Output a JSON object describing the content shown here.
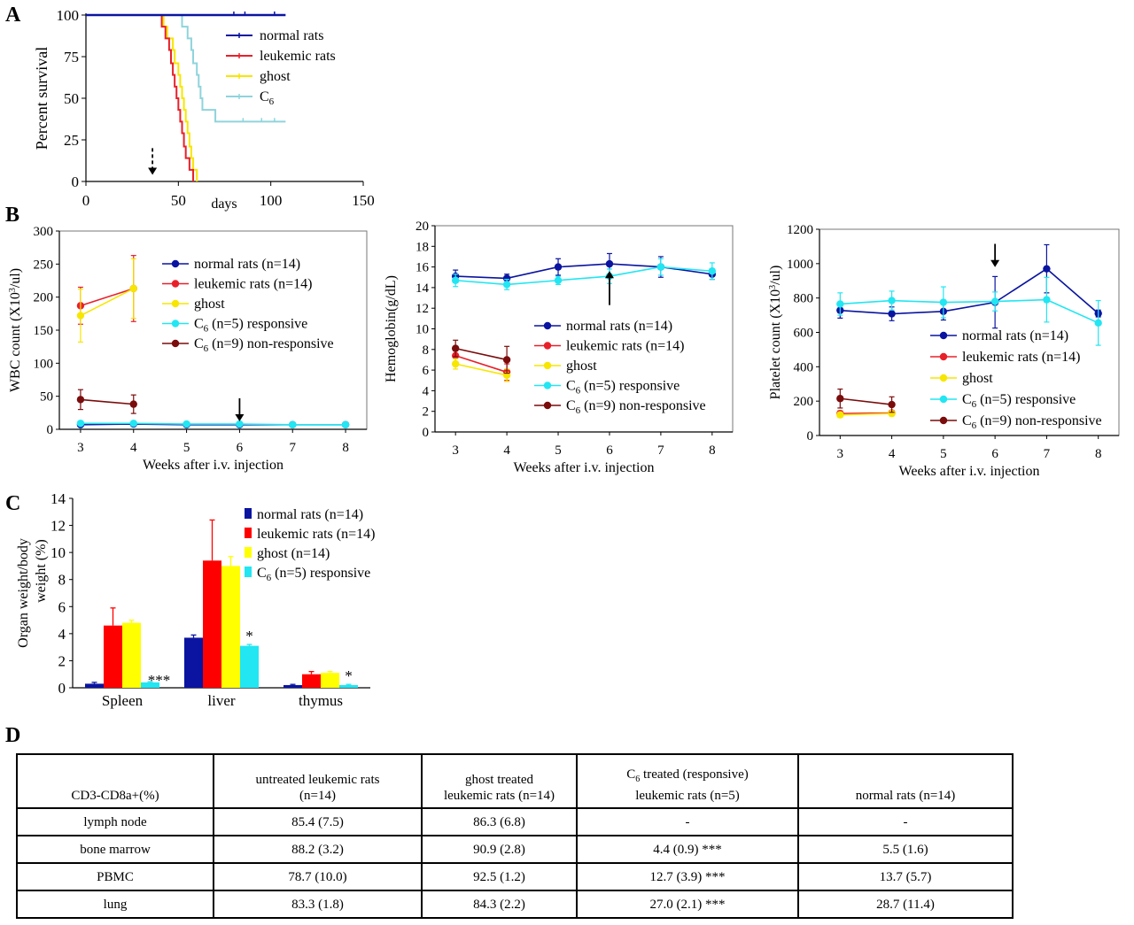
{
  "panels": {
    "a": "A",
    "b": "B",
    "c": "C",
    "d": "D"
  },
  "chart_data": [
    {
      "id": "A",
      "type": "line",
      "step": true,
      "ylabel": "Percent survival",
      "xlabel": "days",
      "xlim": [
        0,
        150
      ],
      "ylim": [
        0,
        100
      ],
      "xticks": [
        "0",
        "50",
        "100",
        "150"
      ],
      "yticks": [
        "0",
        "25",
        "50",
        "75",
        "100"
      ],
      "legend_position": "top-right",
      "series": [
        {
          "name": "normal rats",
          "color": "#0a14a0",
          "points": [
            [
              0,
              100
            ],
            [
              108,
              100
            ]
          ],
          "censored": [
            [
              80,
              100
            ],
            [
              86,
              100
            ],
            [
              102,
              100
            ]
          ]
        },
        {
          "name": "leukemic rats",
          "color": "#e8202a",
          "points": [
            [
              0,
              100
            ],
            [
              41,
              100
            ],
            [
              41,
              93
            ],
            [
              43,
              93
            ],
            [
              43,
              86
            ],
            [
              45,
              86
            ],
            [
              45,
              79
            ],
            [
              46,
              79
            ],
            [
              46,
              71
            ],
            [
              47,
              71
            ],
            [
              47,
              64
            ],
            [
              48,
              64
            ],
            [
              48,
              57
            ],
            [
              49,
              57
            ],
            [
              49,
              50
            ],
            [
              50,
              50
            ],
            [
              50,
              43
            ],
            [
              51,
              43
            ],
            [
              51,
              36
            ],
            [
              52,
              36
            ],
            [
              52,
              29
            ],
            [
              53,
              29
            ],
            [
              53,
              21
            ],
            [
              54,
              21
            ],
            [
              54,
              14
            ],
            [
              56,
              14
            ],
            [
              56,
              7
            ],
            [
              58,
              7
            ],
            [
              58,
              0
            ]
          ]
        },
        {
          "name": "ghost",
          "color": "#f7e600",
          "points": [
            [
              0,
              100
            ],
            [
              42,
              100
            ],
            [
              42,
              93
            ],
            [
              44,
              93
            ],
            [
              44,
              86
            ],
            [
              47,
              86
            ],
            [
              47,
              79
            ],
            [
              48,
              79
            ],
            [
              48,
              71
            ],
            [
              50,
              71
            ],
            [
              50,
              64
            ],
            [
              51,
              64
            ],
            [
              51,
              57
            ],
            [
              52,
              57
            ],
            [
              52,
              50
            ],
            [
              53,
              50
            ],
            [
              53,
              43
            ],
            [
              54,
              43
            ],
            [
              54,
              36
            ],
            [
              55,
              36
            ],
            [
              55,
              29
            ],
            [
              56,
              29
            ],
            [
              56,
              21
            ],
            [
              57,
              21
            ],
            [
              57,
              14
            ],
            [
              58,
              14
            ],
            [
              58,
              7
            ],
            [
              60,
              7
            ],
            [
              60,
              0
            ]
          ]
        },
        {
          "name": "C6",
          "label_main": "C",
          "label_sub": "6",
          "color": "#8fd4dc",
          "points": [
            [
              0,
              100
            ],
            [
              52,
              100
            ],
            [
              52,
              93
            ],
            [
              55,
              93
            ],
            [
              55,
              86
            ],
            [
              57,
              86
            ],
            [
              57,
              79
            ],
            [
              58,
              79
            ],
            [
              58,
              71
            ],
            [
              60,
              71
            ],
            [
              60,
              64
            ],
            [
              61,
              64
            ],
            [
              61,
              57
            ],
            [
              62,
              57
            ],
            [
              62,
              50
            ],
            [
              63,
              50
            ],
            [
              63,
              43
            ],
            [
              65,
              43
            ],
            [
              65,
              43
            ],
            [
              70,
              43
            ],
            [
              70,
              36
            ],
            [
              108,
              36
            ]
          ],
          "censored": [
            [
              85,
              36
            ],
            [
              95,
              36
            ],
            [
              102,
              36
            ]
          ]
        }
      ],
      "annotations": [
        {
          "type": "dashed-arrow",
          "x": 36,
          "y_from": 20,
          "y_to": 4
        }
      ]
    },
    {
      "id": "B1",
      "type": "line",
      "xlabel": "Weeks after i.v. injection",
      "ylabel_main": "WBC count (X10",
      "ylabel_sup": "3",
      "ylabel_end": "/ul)",
      "x": [
        3,
        4,
        5,
        6,
        7,
        8
      ],
      "xlim": [
        2.6,
        8.4
      ],
      "ylim": [
        0,
        300
      ],
      "yticks": [
        "0",
        "50",
        "100",
        "150",
        "200",
        "250",
        "300"
      ],
      "series": [
        {
          "name": "normal rats (n=14)",
          "color": "#0a14a0",
          "x": [
            3,
            4,
            5,
            6,
            7,
            8
          ],
          "values": [
            7,
            8,
            7,
            7,
            7,
            7
          ],
          "err": [
            2,
            2,
            2,
            2,
            2,
            2
          ]
        },
        {
          "name": "leukemic rats (n=14)",
          "color": "#e8202a",
          "x": [
            3,
            4
          ],
          "values": [
            187,
            213
          ],
          "err": [
            28,
            50
          ]
        },
        {
          "name": "ghost",
          "color": "#f7e600",
          "x": [
            3,
            4
          ],
          "values": [
            172,
            213
          ],
          "err": [
            40,
            45
          ]
        },
        {
          "name": "C6 (n=5) responsive",
          "label_main": "C",
          "label_sub": "6",
          "label_end": " (n=5) responsive",
          "color": "#22e6f2",
          "x": [
            3,
            4,
            5,
            6,
            7,
            8
          ],
          "values": [
            9,
            9,
            8,
            8,
            7,
            7
          ],
          "err": [
            2,
            2,
            2,
            2,
            2,
            2
          ]
        },
        {
          "name": "C6 (n=9) non-responsive",
          "label_main": "C",
          "label_sub": "6",
          "label_end": " (n=9) non-responsive",
          "color": "#7a0c0c",
          "x": [
            3,
            4
          ],
          "values": [
            45,
            38
          ],
          "err": [
            15,
            14
          ]
        }
      ],
      "annotations": [
        {
          "type": "arrow-down",
          "x": 6,
          "y_from": 47,
          "y_to": 12
        }
      ]
    },
    {
      "id": "B2",
      "type": "line",
      "xlabel": "Weeks after i.v. injection",
      "ylabel": "Hemoglobin(g/dL)",
      "x": [
        3,
        4,
        5,
        6,
        7,
        8
      ],
      "xlim": [
        2.6,
        8.4
      ],
      "ylim": [
        0,
        20
      ],
      "yticks": [
        "0",
        "2",
        "4",
        "6",
        "8",
        "10",
        "12",
        "14",
        "16",
        "18",
        "20"
      ],
      "series": [
        {
          "name": "normal rats (n=14)",
          "color": "#0a14a0",
          "x": [
            3,
            4,
            5,
            6,
            7,
            8
          ],
          "values": [
            15.1,
            14.9,
            16.0,
            16.3,
            16.0,
            15.3
          ],
          "err": [
            0.6,
            0.4,
            0.8,
            1.0,
            1.0,
            0.5
          ]
        },
        {
          "name": "leukemic rats (n=14)",
          "color": "#e8202a",
          "x": [
            3,
            4
          ],
          "values": [
            7.4,
            5.8
          ],
          "err": [
            0.8,
            0.8
          ]
        },
        {
          "name": "ghost",
          "color": "#f7e600",
          "x": [
            3,
            4
          ],
          "values": [
            6.6,
            5.5
          ],
          "err": [
            0.5,
            0.6
          ]
        },
        {
          "name": "C6 (n=5) responsive",
          "label_main": "C",
          "label_sub": "6",
          "label_end": " (n=5) responsive",
          "color": "#22e6f2",
          "x": [
            3,
            4,
            5,
            6,
            7,
            8
          ],
          "values": [
            14.7,
            14.3,
            14.7,
            15.1,
            16.0,
            15.6
          ],
          "err": [
            0.6,
            0.5,
            0.4,
            0.7,
            0.8,
            0.8
          ]
        },
        {
          "name": "C6 (n=9) non-responsive",
          "label_main": "C",
          "label_sub": "6",
          "label_end": " (n=9) non-responsive",
          "color": "#7a0c0c",
          "x": [
            3,
            4
          ],
          "values": [
            8.1,
            7.0
          ],
          "err": [
            0.8,
            1.3
          ]
        }
      ],
      "annotations": [
        {
          "type": "arrow-up",
          "x": 6,
          "y_from": 12.3,
          "y_to": 15.6
        }
      ]
    },
    {
      "id": "B3",
      "type": "line",
      "xlabel": "Weeks after i.v. injection",
      "ylabel_main": "Platelet count (X10",
      "ylabel_sup": "3",
      "ylabel_end": "/ul)",
      "x": [
        3,
        4,
        5,
        6,
        7,
        8
      ],
      "xlim": [
        2.6,
        8.4
      ],
      "ylim": [
        0,
        1200
      ],
      "yticks": [
        "0",
        "200",
        "400",
        "600",
        "800",
        "1000",
        "1200"
      ],
      "series": [
        {
          "name": "normal rats (n=14)",
          "color": "#0a14a0",
          "x": [
            3,
            4,
            5,
            6,
            7,
            8
          ],
          "values": [
            728,
            708,
            722,
            775,
            970,
            710
          ],
          "err": [
            45,
            40,
            50,
            150,
            140,
            20
          ]
        },
        {
          "name": "leukemic rats (n=14)",
          "color": "#e8202a",
          "x": [
            3,
            4
          ],
          "values": [
            128,
            131
          ],
          "err": [
            15,
            15
          ]
        },
        {
          "name": "ghost",
          "color": "#f7e600",
          "x": [
            3,
            4
          ],
          "values": [
            120,
            128
          ],
          "err": [
            15,
            15
          ]
        },
        {
          "name": "C6 (n=5) responsive",
          "label_main": "C",
          "label_sub": "6",
          "label_end": " (n=5) responsive",
          "color": "#22e6f2",
          "x": [
            3,
            4,
            5,
            6,
            7,
            8
          ],
          "values": [
            765,
            785,
            775,
            780,
            790,
            655
          ],
          "err": [
            65,
            55,
            90,
            55,
            130,
            130
          ]
        },
        {
          "name": "C6 (n=9) non-responsive",
          "label_main": "C",
          "label_sub": "6",
          "label_end": " (n=9) non-responsive",
          "color": "#7a0c0c",
          "x": [
            3,
            4
          ],
          "values": [
            215,
            180
          ],
          "err": [
            55,
            45
          ]
        }
      ],
      "annotations": [
        {
          "type": "arrow-down",
          "x": 6,
          "y_from": 1115,
          "y_to": 980
        }
      ]
    },
    {
      "id": "C",
      "type": "bar",
      "ylabel_line1": "Organ weight/body",
      "ylabel_line2": "weight (%)",
      "categories": [
        "Spleen",
        "liver",
        "thymus"
      ],
      "ylim": [
        0,
        14
      ],
      "yticks": [
        "0",
        "2",
        "4",
        "6",
        "8",
        "10",
        "12",
        "14"
      ],
      "series": [
        {
          "name": "normal rats (n=14)",
          "color": "#0a14a0",
          "values": [
            0.3,
            3.7,
            0.2
          ],
          "err": [
            0.1,
            0.2,
            0.05
          ]
        },
        {
          "name": "leukemic rats (n=14)",
          "color": "#ff0000",
          "values": [
            4.6,
            9.4,
            1.0
          ],
          "err": [
            1.3,
            3.0,
            0.2
          ]
        },
        {
          "name": "ghost (n=14)",
          "color": "#ffff00",
          "values": [
            4.8,
            9.0,
            1.1
          ],
          "err": [
            0.2,
            0.7,
            0.1
          ]
        },
        {
          "name": "C6 (n=5) responsive",
          "label_main": "C",
          "label_sub": "6",
          "label_end": " (n=5) responsive",
          "color": "#22e6f2",
          "values": [
            0.4,
            3.1,
            0.2
          ],
          "err": [
            0.05,
            0.1,
            0.05
          ]
        }
      ],
      "significance": [
        "***",
        "*",
        "*"
      ]
    }
  ],
  "tableD": {
    "headers": [
      {
        "text": "CD3-CD8a+(%)"
      },
      {
        "line1": "untreated leukemic rats",
        "line2": "(n=14)"
      },
      {
        "line1": "ghost treated",
        "line2": "leukemic rats (n=14)"
      },
      {
        "line1_main": "C",
        "line1_sub": "6",
        "line1_end": " treated (responsive)",
        "line2": "leukemic rats (n=5)"
      },
      {
        "text": "normal rats (n=14)"
      }
    ],
    "rows": [
      [
        "lymph node",
        "85.4 (7.5)",
        "86.3 (6.8)",
        "-",
        "-"
      ],
      [
        "bone marrow",
        "88.2 (3.2)",
        "90.9 (2.8)",
        "4.4 (0.9) ***",
        "5.5 (1.6)"
      ],
      [
        "PBMC",
        "78.7 (10.0)",
        "92.5 (1.2)",
        "12.7 (3.9) ***",
        "13.7 (5.7)"
      ],
      [
        "lung",
        "83.3 (1.8)",
        "84.3 (2.2)",
        "27.0 (2.1) ***",
        "28.7 (11.4)"
      ]
    ]
  }
}
